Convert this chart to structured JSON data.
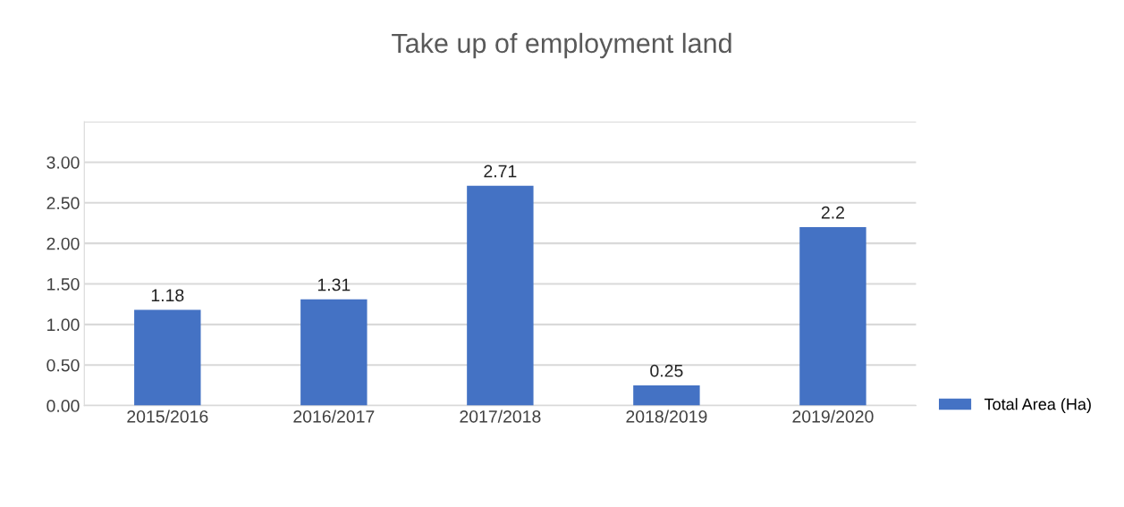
{
  "chart_data": {
    "type": "bar",
    "title": "Take up of employment land",
    "categories": [
      "2015/2016",
      "2016/2017",
      "2017/2018",
      "2018/2019",
      "2019/2020"
    ],
    "series": [
      {
        "name": "Total Area (Ha)",
        "color": "#4472c4",
        "values": [
          1.18,
          1.31,
          2.71,
          0.25,
          2.2
        ]
      }
    ],
    "ylim": [
      0,
      3.5
    ],
    "yticks": [
      {
        "value": 0,
        "label": "0.00"
      },
      {
        "value": 0.5,
        "label": "0.50"
      },
      {
        "value": 1,
        "label": "1.00"
      },
      {
        "value": 1.5,
        "label": "1.50"
      },
      {
        "value": 2,
        "label": "2.00"
      },
      {
        "value": 2.5,
        "label": "2.50"
      },
      {
        "value": 3,
        "label": "3.00"
      },
      {
        "value": 3.5,
        "label": null
      }
    ],
    "grid": "y",
    "legend": "right",
    "data_labels": true
  }
}
